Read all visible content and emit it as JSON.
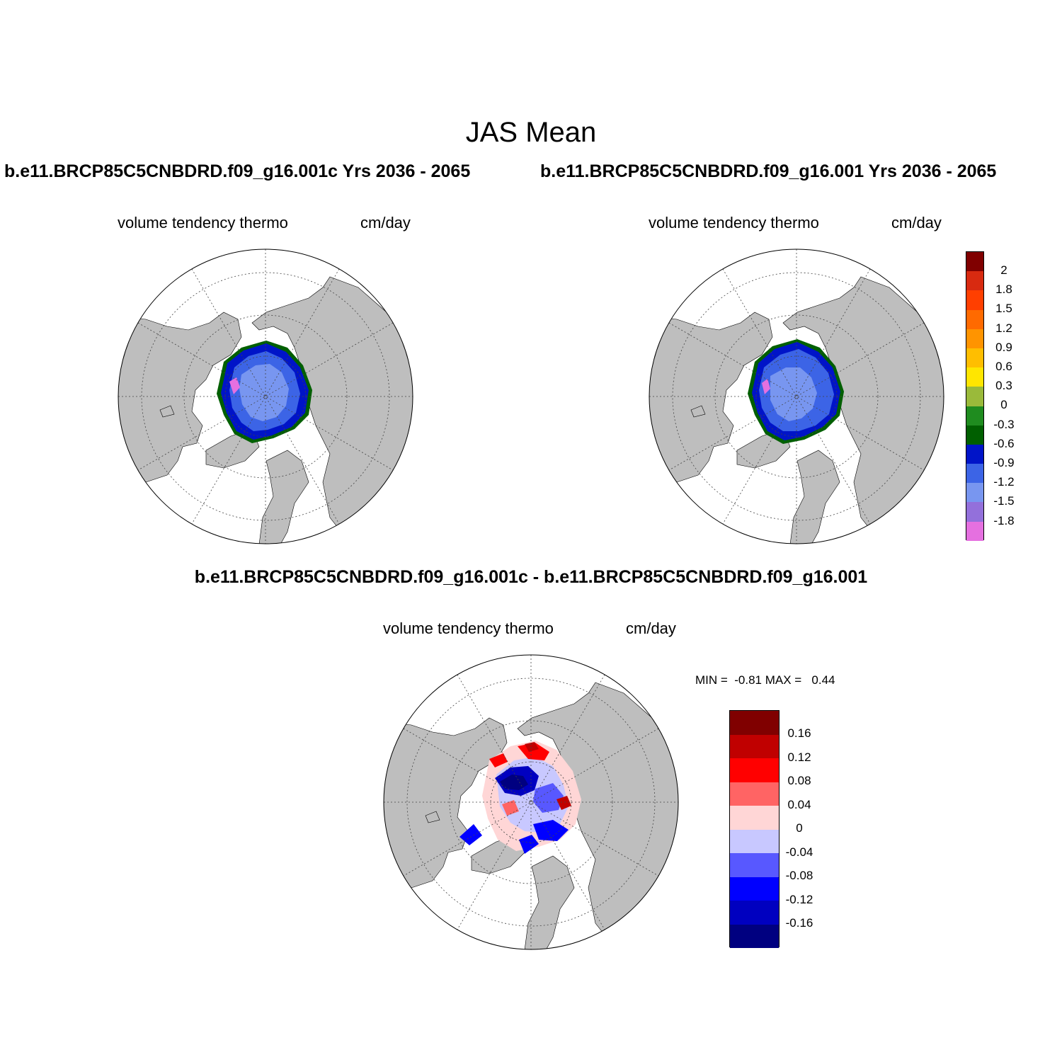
{
  "figure": {
    "title": "JAS Mean"
  },
  "panels": [
    {
      "title": "b.e11.BRCP85C5CNBDRD.f09_g16.001c  Yrs 2036 - 2065",
      "variable": "volume tendency thermo",
      "units": "cm/day"
    },
    {
      "title": "b.e11.BRCP85C5CNBDRD.f09_g16.001  Yrs 2036 - 2065",
      "variable": "volume tendency thermo",
      "units": "cm/day"
    },
    {
      "title": "b.e11.BRCP85C5CNBDRD.f09_g16.001c - b.e11.BRCP85C5CNBDRD.f09_g16.001",
      "variable": "volume tendency thermo",
      "units": "cm/day",
      "stats_text": "MIN =  -0.81 MAX =   0.44"
    }
  ],
  "colorbars": {
    "absolute": {
      "labels": [
        "2",
        "1.8",
        "1.5",
        "1.2",
        "0.9",
        "0.6",
        "0.3",
        "0",
        "-0.3",
        "-0.6",
        "-0.9",
        "-1.2",
        "-1.5",
        "-1.8"
      ],
      "colors": [
        "#800000",
        "#d82a10",
        "#ff3f00",
        "#ff6a00",
        "#ff9400",
        "#ffbe00",
        "#ffe600",
        "#9aba3a",
        "#1f8c1f",
        "#005f00",
        "#0014c8",
        "#3c64e6",
        "#7896f0",
        "#9370db",
        "#e570e0"
      ]
    },
    "difference": {
      "labels": [
        "0.16",
        "0.12",
        "0.08",
        "0.04",
        "0",
        "-0.04",
        "-0.08",
        "-0.12",
        "-0.16"
      ],
      "colors": [
        "#800000",
        "#c00000",
        "#ff0000",
        "#ff6464",
        "#ffd6d6",
        "#c8c8ff",
        "#5858ff",
        "#0000ff",
        "#0000c0",
        "#000080"
      ]
    }
  },
  "map_style": {
    "ocean": "#ffffff",
    "land": "#bebebe",
    "grid_line": "#444444"
  }
}
